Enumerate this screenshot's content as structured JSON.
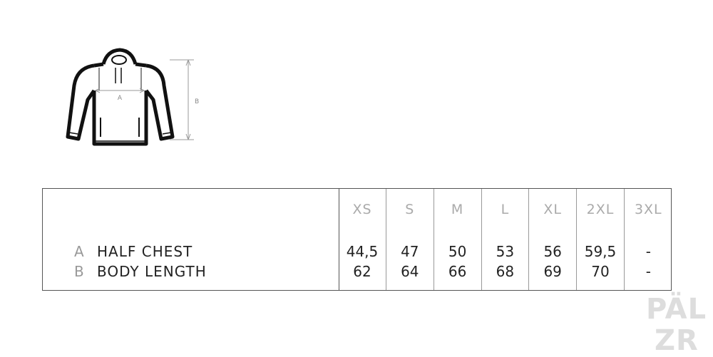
{
  "diagram": {
    "label_a": "A",
    "label_b": "B"
  },
  "table": {
    "sizes": [
      "XS",
      "S",
      "M",
      "L",
      "XL",
      "2XL",
      "3XL"
    ],
    "rows": [
      {
        "key": "A",
        "label": "HALF CHEST",
        "values": [
          "44,5",
          "47",
          "50",
          "53",
          "56",
          "59,5",
          "-"
        ]
      },
      {
        "key": "B",
        "label": "BODY LENGTH",
        "values": [
          "62",
          "64",
          "66",
          "68",
          "69",
          "70",
          "-"
        ]
      }
    ]
  },
  "logo": {
    "line1": "PÄL",
    "line2": "ZR"
  }
}
